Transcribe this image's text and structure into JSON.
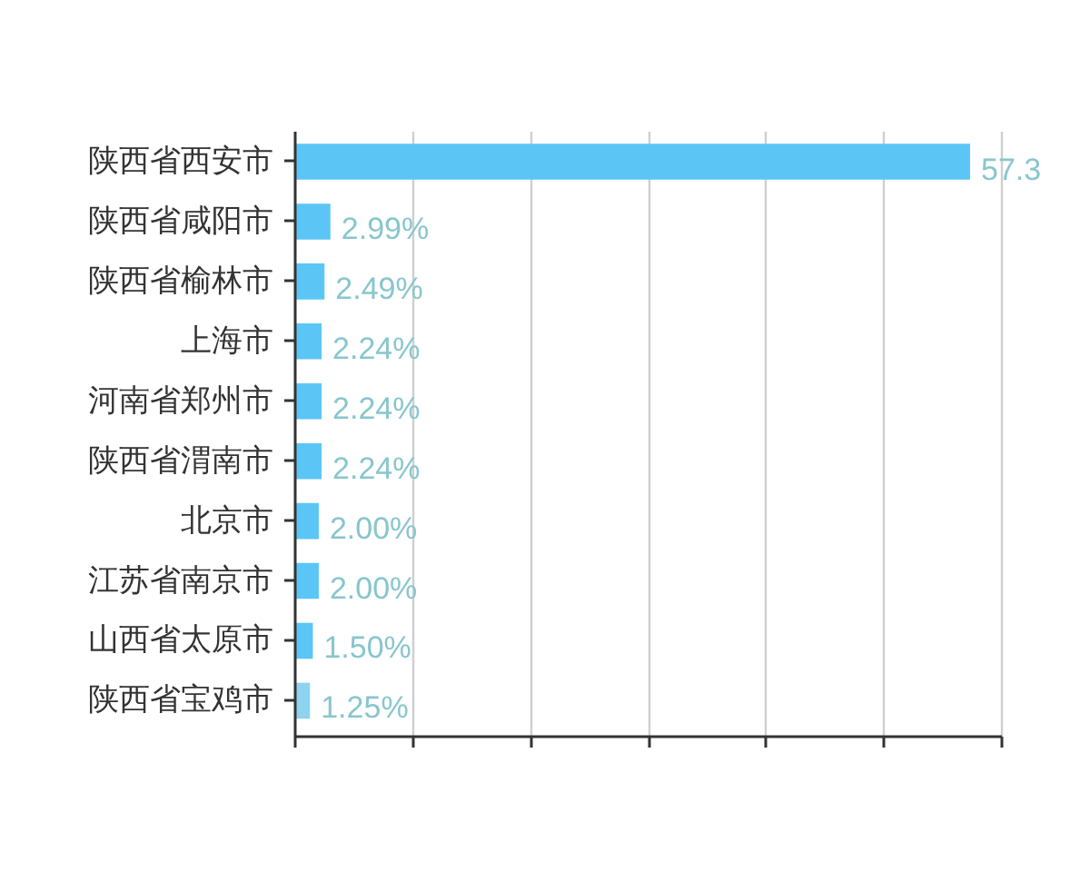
{
  "chart_data": {
    "type": "bar",
    "orientation": "horizontal",
    "categories": [
      "陕西省西安市",
      "陕西省咸阳市",
      "陕西省榆林市",
      "上海市",
      "河南省郑州市",
      "陕西省渭南市",
      "北京市",
      "江苏省南京市",
      "山西省太原市",
      "陕西省宝鸡市"
    ],
    "values": [
      57.3,
      2.99,
      2.49,
      2.24,
      2.24,
      2.24,
      2.0,
      2.0,
      1.5,
      1.25
    ],
    "value_labels": [
      "57.3",
      "2.99%",
      "2.49%",
      "2.24%",
      "2.24%",
      "2.24%",
      "2.00%",
      "2.00%",
      "1.50%",
      "1.25%"
    ],
    "colors": [
      "#5bc6f6",
      "#5bc6f6",
      "#5bc6f6",
      "#5bc6f6",
      "#5bc6f6",
      "#5bc6f6",
      "#5bc6f6",
      "#5bc6f6",
      "#5bc6f6",
      "#8ed3ef"
    ],
    "xlim": [
      0,
      60
    ],
    "xticks": [
      {
        "value": 0,
        "label": null
      },
      {
        "value": 10,
        "label": null
      },
      {
        "value": 20,
        "label": null
      },
      {
        "value": 30,
        "label": null
      },
      {
        "value": 40,
        "label": null
      },
      {
        "value": 50,
        "label": null
      },
      {
        "value": 60,
        "label": null
      }
    ],
    "grid": "x",
    "tick_labels": "y"
  }
}
